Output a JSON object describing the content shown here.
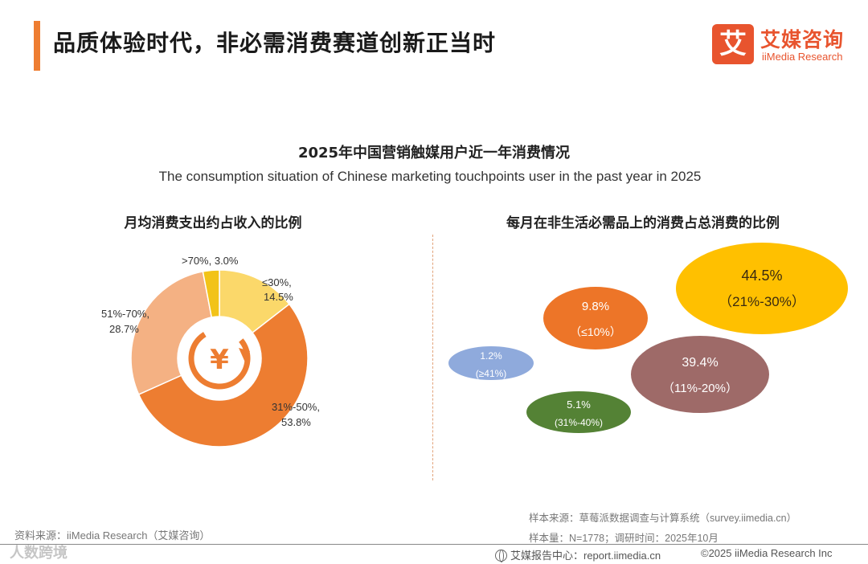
{
  "header": {
    "title": "品质体验时代，非必需消费赛道创新正当时",
    "logo_glyph": "艾",
    "logo_cn": "艾媒咨询",
    "logo_en": "iiMedia Research"
  },
  "chart_data": [
    {
      "type": "pie",
      "title": "2025年中国营销触媒用户近一年消费情况",
      "subtitle": "The consumption situation of Chinese marketing touchpoints user in the past year in 2025",
      "panel_title": "月均消费支出约占收入的比例",
      "donut": true,
      "center_icon": "yuen-refresh-icon",
      "slices": [
        {
          "label": "≤30%,",
          "value_label": "14.5%",
          "value": 14.5,
          "color": "#fbd86a"
        },
        {
          "label": "31%-50%,",
          "value_label": "53.8%",
          "value": 53.8,
          "color": "#ed7d31"
        },
        {
          "label": "51%-70%,",
          "value_label": "28.7%",
          "value": 28.7,
          "color": "#f4b183"
        },
        {
          "label": ">70%, 3.0%",
          "value_label": "",
          "value": 3.0,
          "color": "#f2c318"
        }
      ]
    },
    {
      "type": "bubble",
      "panel_title": "每月在非生活必需品上的消费占总消费的比例",
      "bubbles": [
        {
          "range": "（21%-30%）",
          "value_label": "44.5%",
          "value": 44.5,
          "color": "#ffc000",
          "text_color": "#3a2a10"
        },
        {
          "range": "（11%-20%）",
          "value_label": "39.4%",
          "value": 39.4,
          "color": "#9e6a68",
          "text_color": "#ffffff"
        },
        {
          "range": "（≤10%）",
          "value_label": "9.8%",
          "value": 9.8,
          "color": "#ed7528",
          "text_color": "#ffffff"
        },
        {
          "range": "(31%-40%)",
          "value_label": "5.1%",
          "value": 5.1,
          "color": "#548235",
          "text_color": "#ffffff"
        },
        {
          "range": "(≥41%)",
          "value_label": "1.2%",
          "value": 1.2,
          "color": "#8faadc",
          "text_color": "#ffffff"
        }
      ]
    }
  ],
  "footer": {
    "source": "资料来源：iiMedia Research（艾媒咨询）",
    "sample_source": "样本来源：草莓派数据调查与计算系统（survey.iimedia.cn）",
    "sample_size": "样本量：N=1778；调研时间：2025年10月",
    "report_center": "艾媒报告中心：report.iimedia.cn",
    "copyright": "©2025  iiMedia Research  Inc",
    "watermark": "人数跨境"
  }
}
